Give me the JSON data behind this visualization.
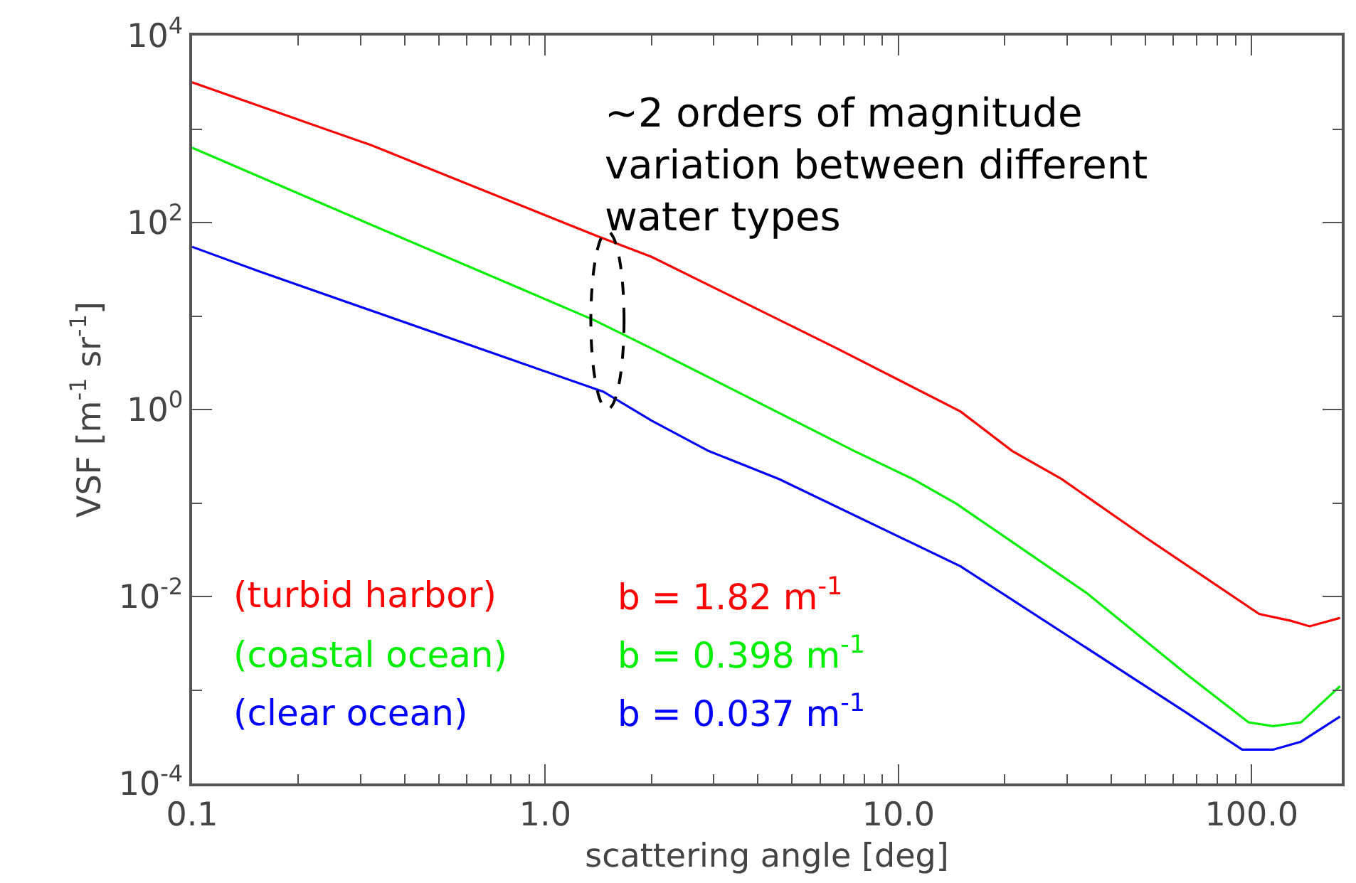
{
  "chart_data": {
    "type": "line",
    "xlabel": "scattering angle [deg]",
    "ylabel": "VSF [m$^{-1}$ sr$^{-1}$]",
    "log": "xy",
    "legend": false,
    "marker": "none",
    "line_style": "solid",
    "xlim": [
      0.1,
      180
    ],
    "ylim": [
      0.0001,
      10000
    ],
    "xticks": [
      {
        "value": 0.1,
        "label": "0.1"
      },
      {
        "value": 0.2,
        "label": null
      },
      {
        "value": 0.3,
        "label": null
      },
      {
        "value": 0.4,
        "label": null
      },
      {
        "value": 0.5,
        "label": null
      },
      {
        "value": 0.6,
        "label": null
      },
      {
        "value": 0.7,
        "label": null
      },
      {
        "value": 0.8,
        "label": null
      },
      {
        "value": 0.9,
        "label": null
      },
      {
        "value": 1,
        "label": "1.0"
      },
      {
        "value": 2,
        "label": null
      },
      {
        "value": 3,
        "label": null
      },
      {
        "value": 4,
        "label": null
      },
      {
        "value": 5,
        "label": null
      },
      {
        "value": 6,
        "label": null
      },
      {
        "value": 7,
        "label": null
      },
      {
        "value": 8,
        "label": null
      },
      {
        "value": 9,
        "label": null
      },
      {
        "value": 10,
        "label": "10.0"
      },
      {
        "value": 20,
        "label": null
      },
      {
        "value": 30,
        "label": null
      },
      {
        "value": 40,
        "label": null
      },
      {
        "value": 50,
        "label": null
      },
      {
        "value": 60,
        "label": null
      },
      {
        "value": 70,
        "label": null
      },
      {
        "value": 80,
        "label": null
      },
      {
        "value": 90,
        "label": null
      },
      {
        "value": 100,
        "label": "100.0"
      }
    ],
    "yticks": [
      {
        "value": 0.0001,
        "label": "10$^{-4}$"
      },
      {
        "value": 0.001,
        "label": null
      },
      {
        "value": 0.01,
        "label": "10$^{-2}$"
      },
      {
        "value": 0.1,
        "label": null
      },
      {
        "value": 1,
        "label": "10$^{0}$"
      },
      {
        "value": 10,
        "label": null
      },
      {
        "value": 100,
        "label": "10$^{2}$"
      },
      {
        "value": 1000,
        "label": null
      },
      {
        "value": 10000,
        "label": "10$^{4}$"
      }
    ],
    "series": [
      {
        "name": "(turbid harbor)",
        "color": "#ff0000",
        "x": [
          0.1,
          0.32,
          1.41,
          2.0,
          6.7,
          15,
          21,
          29,
          50,
          105,
          129,
          146,
          178
        ],
        "values": [
          3160,
          676,
          71,
          43,
          4.5,
          0.95,
          0.36,
          0.18,
          0.043,
          0.0065,
          0.0055,
          0.0048,
          0.0059
        ]
      },
      {
        "name": "(coastal ocean)",
        "color": "#00ee00",
        "x": [
          0.1,
          0.29,
          1.37,
          2.0,
          7.5,
          11,
          14.6,
          34,
          65,
          98,
          115,
          138,
          178
        ],
        "values": [
          631,
          112,
          9.1,
          4.5,
          0.36,
          0.18,
          0.098,
          0.011,
          0.0015,
          0.00045,
          0.00041,
          0.00045,
          0.0011
        ]
      },
      {
        "name": "(clear ocean)",
        "color": "#0000ff",
        "x": [
          0.1,
          0.155,
          1.46,
          2.0,
          2.9,
          4.6,
          15,
          65,
          94,
          115,
          138,
          178
        ],
        "values": [
          55,
          30,
          1.55,
          0.76,
          0.36,
          0.18,
          0.021,
          0.00058,
          0.00023,
          0.00023,
          0.00028,
          0.00052
        ]
      }
    ],
    "annotations": [
      {
        "text": "~2 orders of magnitude\nvariation between different\nwater types",
        "x": 1.5,
        "y": 9
      },
      "b = 1.82 m$^{-1}$",
      "b = 0.398 m$^{-1}$",
      "b = 0.037 m$^{-1}$"
    ]
  }
}
